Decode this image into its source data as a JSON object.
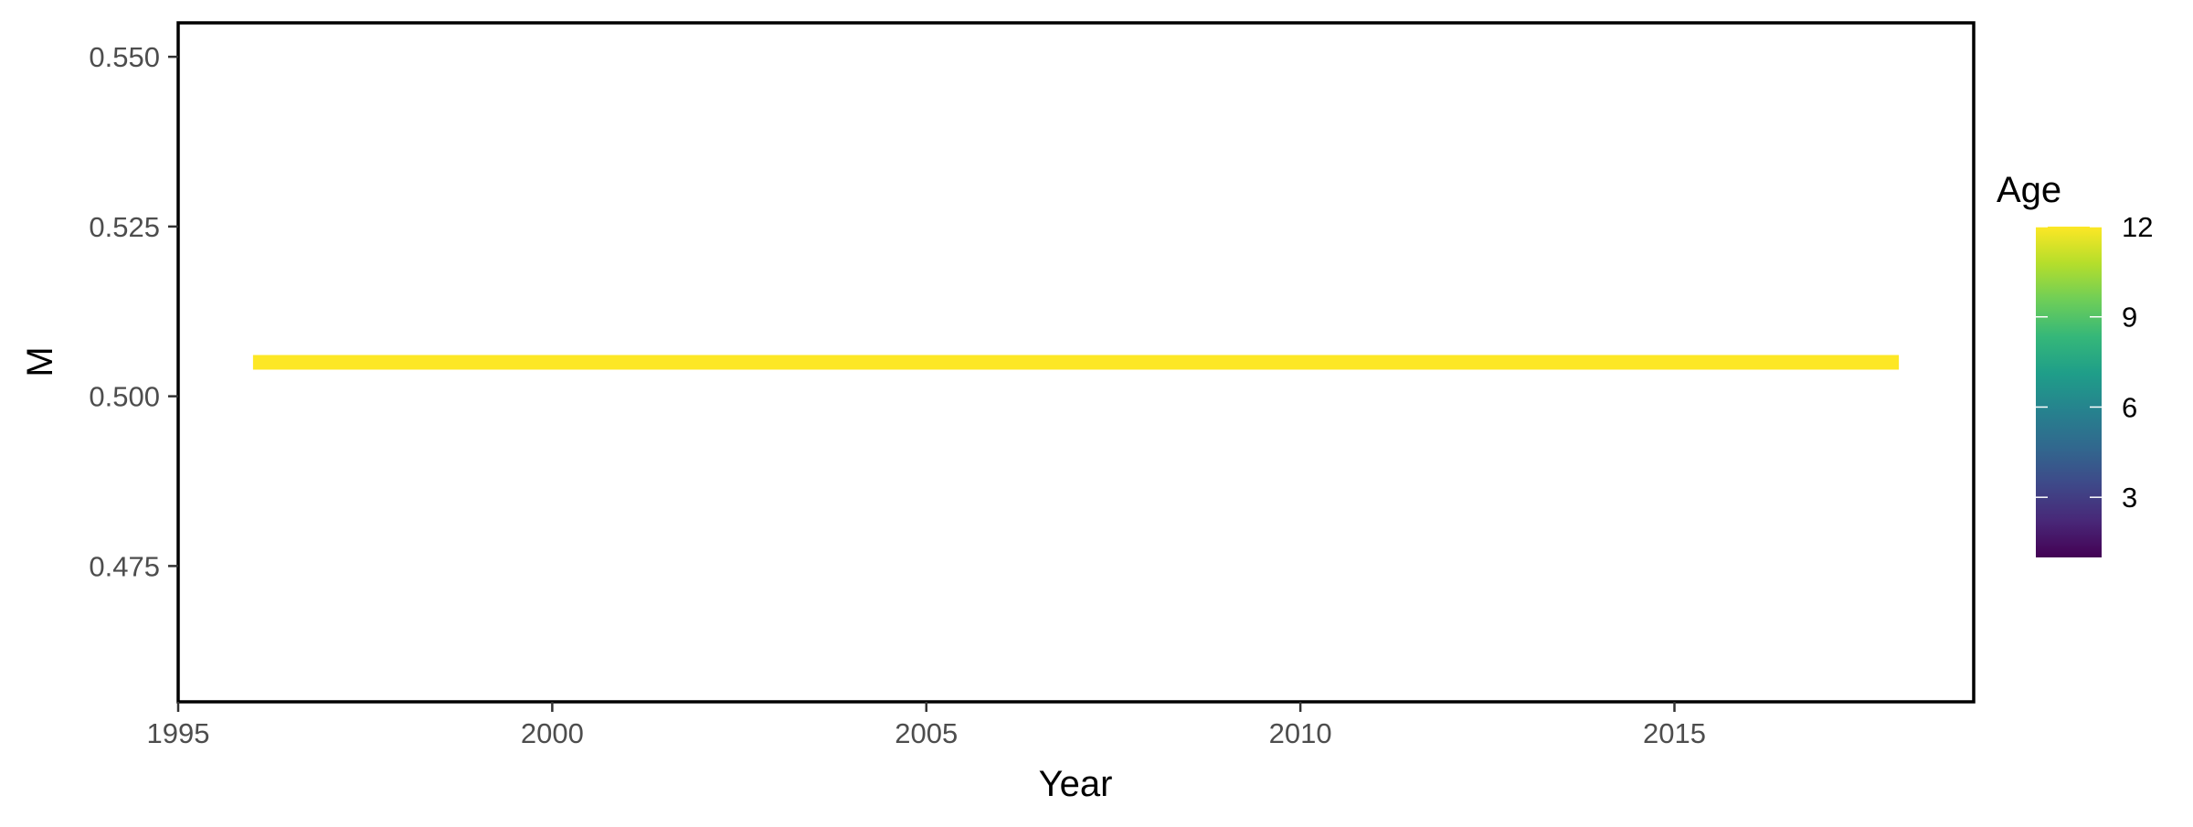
{
  "chart_data": {
    "type": "line",
    "title": "",
    "xlabel": "Year",
    "ylabel": "M",
    "xlim": [
      1995,
      2019
    ],
    "ylim": [
      0.455,
      0.555
    ],
    "xticks": [
      1995,
      2000,
      2005,
      2010,
      2015
    ],
    "yticks": [
      0.475,
      0.5,
      0.525,
      0.55
    ],
    "ytick_labels": [
      "0.475",
      "0.500",
      "0.525",
      "0.550"
    ],
    "xtick_labels": [
      "1995",
      "2000",
      "2005",
      "2010",
      "2015"
    ],
    "grid": false,
    "series": [
      {
        "age": 12,
        "color": "#fde725",
        "x": [
          1996,
          2018
        ],
        "y": [
          0.505,
          0.505
        ]
      }
    ],
    "legend": {
      "title": "Age",
      "placement": "right",
      "type": "colorbar",
      "range": [
        1,
        12
      ],
      "breaks": [
        3,
        6,
        9,
        12
      ],
      "break_labels": [
        "3",
        "6",
        "9",
        "12"
      ],
      "colors": [
        "#440154",
        "#482878",
        "#3e4989",
        "#31688e",
        "#26828e",
        "#1f9e89",
        "#35b779",
        "#6ece58",
        "#b5de2b",
        "#fde725"
      ]
    }
  }
}
